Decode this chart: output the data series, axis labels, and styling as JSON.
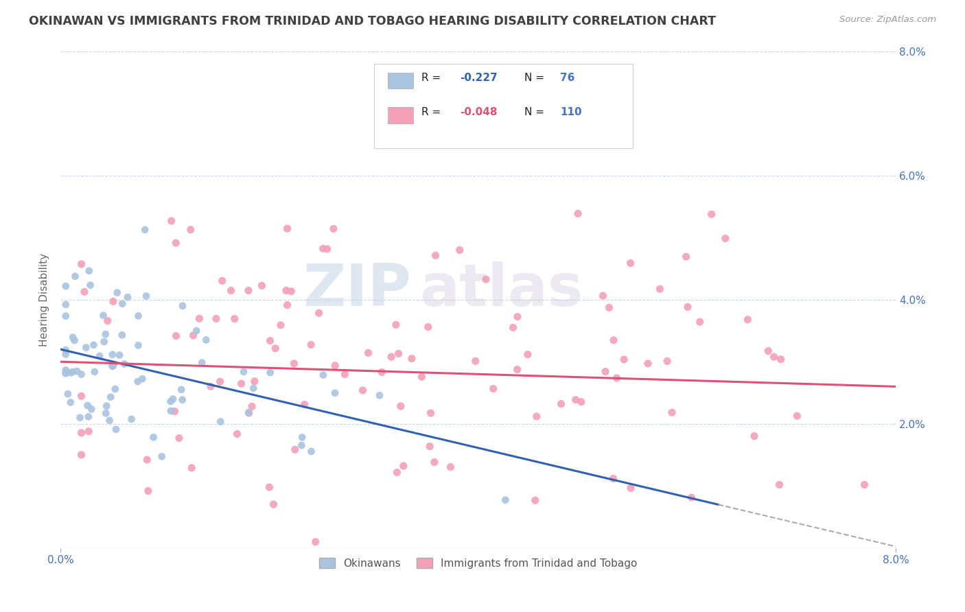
{
  "title": "OKINAWAN VS IMMIGRANTS FROM TRINIDAD AND TOBAGO HEARING DISABILITY CORRELATION CHART",
  "source": "Source: ZipAtlas.com",
  "ylabel": "Hearing Disability",
  "xlim": [
    0.0,
    0.08
  ],
  "ylim": [
    0.0,
    0.08
  ],
  "xtick_positions": [
    0.0,
    0.08
  ],
  "xtick_labels": [
    "0.0%",
    "8.0%"
  ],
  "yticks": [
    0.0,
    0.02,
    0.04,
    0.06,
    0.08
  ],
  "ytick_labels_right": [
    "",
    "2.0%",
    "4.0%",
    "6.0%",
    "8.0%"
  ],
  "series1_name": "Okinawans",
  "series1_color": "#aac4e0",
  "series1_R": -0.227,
  "series1_N": 76,
  "series1_trend_color": "#3060b0",
  "series2_name": "Immigrants from Trinidad and Tobago",
  "series2_color": "#f4a0b8",
  "series2_R": -0.048,
  "series2_N": 110,
  "series2_trend_color": "#e05075",
  "background_color": "#ffffff",
  "grid_color": "#c8d8e8",
  "title_color": "#404040",
  "axis_color": "#4472c4",
  "legend_box_color1": "#aac4e0",
  "legend_box_color2": "#f4a0b8",
  "watermark_zip": "ZIP",
  "watermark_atlas": "atlas",
  "seed": 12
}
